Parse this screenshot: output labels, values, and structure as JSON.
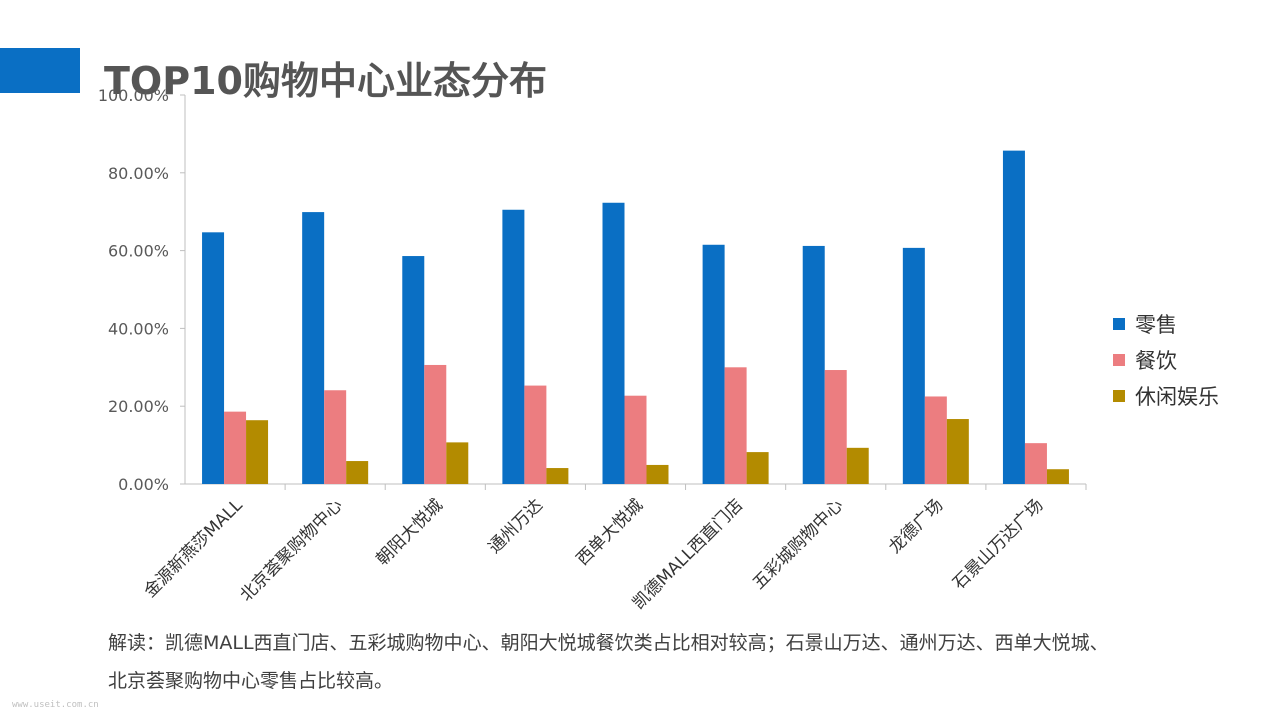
{
  "header": {
    "title": "TOP10购物中心业态分布"
  },
  "colors": {
    "accent": "#0a6fc4"
  },
  "chart_data": {
    "type": "bar",
    "categories": [
      "金源新燕莎MALL",
      "北京荟聚购物中心",
      "朝阳大悦城",
      "通州万达",
      "西单大悦城",
      "凯德MALL西直门店",
      "五彩城购物中心",
      "龙德广场",
      "石景山万达广场"
    ],
    "series": [
      {
        "name": "零售",
        "color": "#0a6fc4",
        "values": [
          64.7,
          69.9,
          58.6,
          70.5,
          72.3,
          61.5,
          61.2,
          60.7,
          85.7
        ]
      },
      {
        "name": "餐饮",
        "color": "#ec7d80",
        "values": [
          18.6,
          24.1,
          30.6,
          25.3,
          22.7,
          30.0,
          29.3,
          22.5,
          10.5
        ]
      },
      {
        "name": "休闲娱乐",
        "color": "#b38b00",
        "values": [
          16.4,
          5.9,
          10.7,
          4.1,
          4.9,
          8.2,
          9.3,
          16.7,
          3.8
        ]
      }
    ],
    "yticks": [
      "0.00%",
      "20.00%",
      "40.00%",
      "60.00%",
      "80.00%",
      "100.00%"
    ],
    "ylim": [
      0,
      100
    ],
    "grid": false,
    "legend_position": "right"
  },
  "note": {
    "line1": "解读：凯德MALL西直门店、五彩城购物中心、朝阳大悦城餐饮类占比相对较高；石景山万达、通州万达、西单大悦城、",
    "line2": "北京荟聚购物中心零售占比较高。"
  },
  "watermark": "www.useit.com.cn"
}
